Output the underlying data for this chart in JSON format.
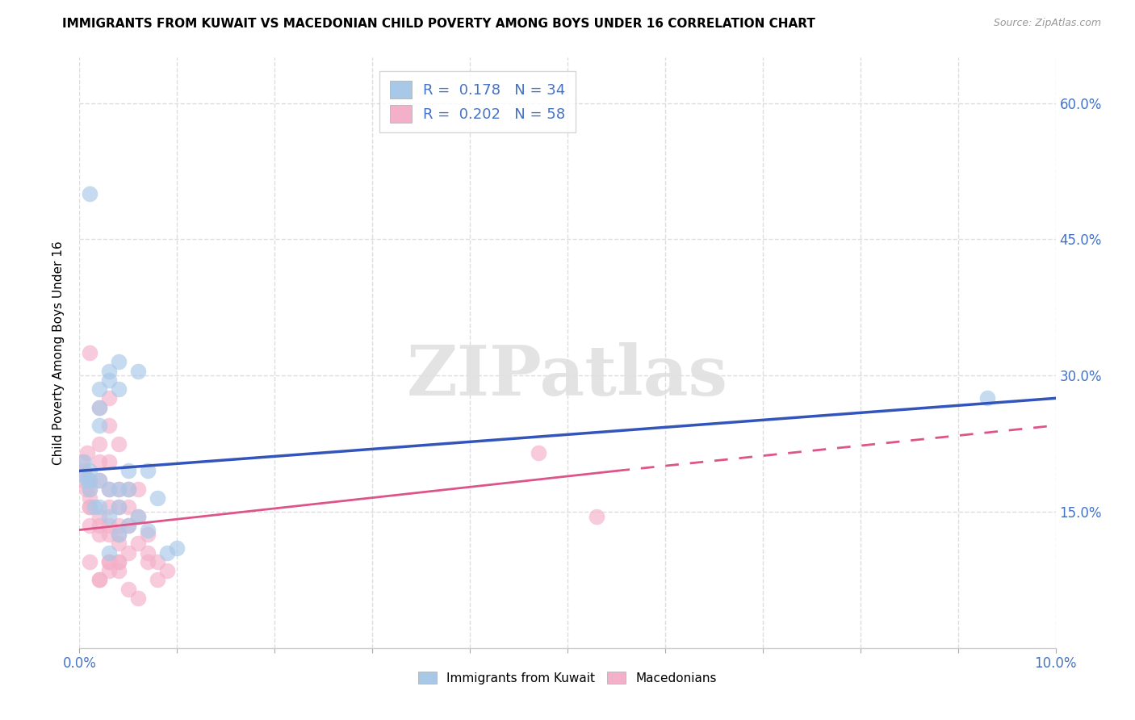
{
  "title": "IMMIGRANTS FROM KUWAIT VS MACEDONIAN CHILD POVERTY AMONG BOYS UNDER 16 CORRELATION CHART",
  "source": "Source: ZipAtlas.com",
  "xlabel_bottom": "Immigrants from Kuwait",
  "xlabel_bottom2": "Macedonians",
  "ylabel": "Child Poverty Among Boys Under 16",
  "xlim": [
    0.0,
    0.1
  ],
  "ylim": [
    0.0,
    0.65
  ],
  "xtick_vals": [
    0.0,
    0.01,
    0.02,
    0.03,
    0.04,
    0.05,
    0.06,
    0.07,
    0.08,
    0.09,
    0.1
  ],
  "xtick_labels_show": [
    "0.0%",
    "",
    "",
    "",
    "",
    "",
    "",
    "",
    "",
    "",
    "10.0%"
  ],
  "ytick_vals": [
    0.15,
    0.3,
    0.45,
    0.6
  ],
  "grid_color": "#dddddd",
  "blue_scatter_color": "#a8c8e8",
  "pink_scatter_color": "#f4b0c8",
  "blue_line_color": "#3355bb",
  "pink_line_color": "#dd5588",
  "R_blue": 0.178,
  "N_blue": 34,
  "R_pink": 0.202,
  "N_pink": 58,
  "blue_x": [
    0.001,
    0.001,
    0.001,
    0.002,
    0.002,
    0.002,
    0.002,
    0.003,
    0.003,
    0.003,
    0.004,
    0.004,
    0.004,
    0.004,
    0.005,
    0.005,
    0.005,
    0.006,
    0.006,
    0.007,
    0.007,
    0.008,
    0.009,
    0.01,
    0.0005,
    0.0005,
    0.001,
    0.002,
    0.003,
    0.004,
    0.093,
    0.0008,
    0.0015,
    0.003
  ],
  "blue_y": [
    0.195,
    0.185,
    0.5,
    0.285,
    0.265,
    0.245,
    0.185,
    0.305,
    0.295,
    0.175,
    0.315,
    0.285,
    0.175,
    0.155,
    0.195,
    0.175,
    0.135,
    0.305,
    0.145,
    0.195,
    0.13,
    0.165,
    0.105,
    0.11,
    0.205,
    0.19,
    0.175,
    0.155,
    0.145,
    0.125,
    0.275,
    0.185,
    0.155,
    0.105
  ],
  "pink_x": [
    0.0003,
    0.0005,
    0.0008,
    0.001,
    0.001,
    0.001,
    0.001,
    0.002,
    0.002,
    0.002,
    0.002,
    0.003,
    0.003,
    0.003,
    0.003,
    0.003,
    0.004,
    0.004,
    0.004,
    0.004,
    0.004,
    0.005,
    0.005,
    0.005,
    0.005,
    0.006,
    0.006,
    0.006,
    0.007,
    0.007,
    0.007,
    0.008,
    0.008,
    0.009,
    0.001,
    0.002,
    0.003,
    0.004,
    0.001,
    0.002,
    0.003,
    0.004,
    0.005,
    0.006,
    0.004,
    0.003,
    0.002,
    0.001,
    0.003,
    0.002,
    0.047,
    0.053,
    0.0005,
    0.0007,
    0.001,
    0.002,
    0.003,
    0.004
  ],
  "pink_y": [
    0.205,
    0.195,
    0.215,
    0.325,
    0.185,
    0.175,
    0.165,
    0.265,
    0.225,
    0.205,
    0.185,
    0.275,
    0.245,
    0.205,
    0.175,
    0.155,
    0.225,
    0.175,
    0.155,
    0.135,
    0.125,
    0.175,
    0.155,
    0.135,
    0.105,
    0.175,
    0.145,
    0.115,
    0.125,
    0.105,
    0.095,
    0.095,
    0.075,
    0.085,
    0.155,
    0.145,
    0.135,
    0.115,
    0.135,
    0.125,
    0.095,
    0.085,
    0.065,
    0.055,
    0.095,
    0.085,
    0.075,
    0.095,
    0.095,
    0.075,
    0.215,
    0.145,
    0.185,
    0.175,
    0.155,
    0.135,
    0.125,
    0.095
  ],
  "watermark_text": "ZIPatlas",
  "blue_line_x0": 0.0,
  "blue_line_y0": 0.195,
  "blue_line_x1": 0.1,
  "blue_line_y1": 0.275,
  "pink_line_x0": 0.0,
  "pink_line_y0": 0.13,
  "pink_line_solid_x1": 0.055,
  "pink_line_solid_y1": 0.195,
  "pink_line_dash_x1": 0.1,
  "pink_line_dash_y1": 0.245
}
